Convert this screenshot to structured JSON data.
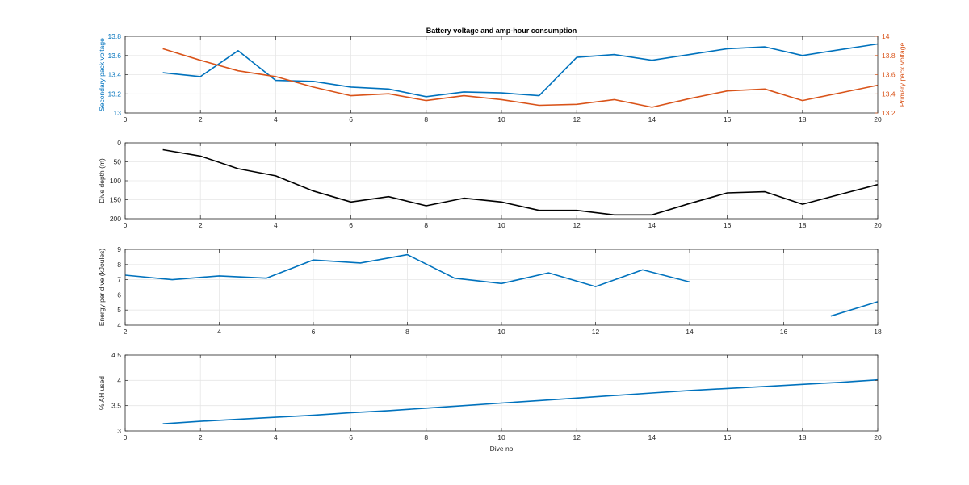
{
  "figure": {
    "title": "Battery voltage and amp-hour consumption",
    "xlabel": "Dive no"
  },
  "colors": {
    "blue": "#0072BD",
    "orange": "#D95319",
    "black": "#000000",
    "grid": "#e6e6e6",
    "axis": "#262626"
  },
  "chart_data": [
    {
      "type": "line",
      "title": "Battery voltage and amp-hour consumption",
      "xlabel": "",
      "ylabel": "Secondary pack voltage",
      "ylabel_right": "Primary pack voltage",
      "xlim": [
        0,
        20
      ],
      "ylim": [
        13,
        13.8
      ],
      "ylim_right": [
        13.2,
        14
      ],
      "xticks": [
        0,
        2,
        4,
        6,
        8,
        10,
        12,
        14,
        16,
        18,
        20
      ],
      "yticks": [
        13,
        13.2,
        13.4,
        13.6,
        13.8
      ],
      "yticks_right": [
        13.2,
        13.4,
        13.6,
        13.8,
        14
      ],
      "grid": true,
      "series": [
        {
          "axis": "left",
          "color": "#0072BD",
          "x": [
            1,
            2,
            3,
            4,
            5,
            6,
            7,
            8,
            9,
            10,
            11,
            12,
            13,
            14,
            15,
            16,
            17,
            18,
            19,
            20
          ],
          "values": [
            13.42,
            13.38,
            13.65,
            13.34,
            13.33,
            13.27,
            13.25,
            13.17,
            13.22,
            13.21,
            13.18,
            13.58,
            13.61,
            13.55,
            13.61,
            13.67,
            13.69,
            13.6,
            13.66,
            13.72
          ]
        },
        {
          "axis": "right",
          "color": "#D95319",
          "x": [
            1,
            2,
            3,
            4,
            5,
            6,
            7,
            8,
            9,
            10,
            11,
            12,
            13,
            14,
            15,
            16,
            17,
            18,
            19,
            20
          ],
          "values": [
            13.87,
            13.75,
            13.64,
            13.58,
            13.47,
            13.38,
            13.4,
            13.33,
            13.38,
            13.34,
            13.28,
            13.29,
            13.34,
            13.26,
            13.35,
            13.43,
            13.45,
            13.33,
            13.41,
            13.49
          ]
        }
      ]
    },
    {
      "type": "line",
      "ylabel": "Dive depth (m)",
      "xlim": [
        0,
        20
      ],
      "ylim": [
        0,
        200
      ],
      "y_reversed": true,
      "xticks": [
        0,
        2,
        4,
        6,
        8,
        10,
        12,
        14,
        16,
        18,
        20
      ],
      "yticks": [
        0,
        50,
        100,
        150,
        200
      ],
      "grid": true,
      "series": [
        {
          "color": "#000000",
          "x": [
            1,
            2,
            3,
            4,
            5,
            6,
            7,
            8,
            9,
            10,
            11,
            12,
            13,
            14,
            15,
            16,
            17,
            18,
            19,
            20
          ],
          "values": [
            18,
            35,
            68,
            87,
            127,
            156,
            142,
            166,
            146,
            156,
            178,
            178,
            190,
            190,
            160,
            132,
            129,
            162,
            136,
            110
          ]
        }
      ]
    },
    {
      "type": "line",
      "ylabel": "Energy per dive (kJoules)",
      "xlim": [
        2,
        18
      ],
      "ylim": [
        4,
        9
      ],
      "xticks": [
        2,
        4,
        6,
        8,
        10,
        12,
        14,
        16,
        18
      ],
      "yticks": [
        4,
        5,
        6,
        7,
        8,
        9
      ],
      "grid": true,
      "series": [
        {
          "color": "#0072BD",
          "segments": [
            {
              "x": [
                2,
                3,
                4,
                5,
                6,
                7,
                8,
                9,
                10,
                11,
                12,
                13,
                14
              ],
              "values": [
                7.3,
                7.0,
                7.25,
                7.1,
                8.3,
                8.1,
                8.65,
                7.1,
                6.75,
                7.45,
                6.55,
                7.65,
                6.85
              ]
            },
            {
              "x": [
                17,
                18
              ],
              "values": [
                4.6,
                5.55
              ]
            }
          ]
        }
      ]
    },
    {
      "type": "line",
      "ylabel": "% AH used",
      "xlabel": "Dive no",
      "xlim": [
        0,
        20
      ],
      "ylim": [
        3,
        4.5
      ],
      "xticks": [
        0,
        2,
        4,
        6,
        8,
        10,
        12,
        14,
        16,
        18,
        20
      ],
      "yticks": [
        3,
        3.5,
        4,
        4.5
      ],
      "grid": true,
      "series": [
        {
          "color": "#0072BD",
          "x": [
            1,
            2,
            3,
            4,
            5,
            6,
            7,
            8,
            9,
            10,
            11,
            12,
            13,
            14,
            15,
            16,
            17,
            18,
            19,
            20
          ],
          "values": [
            3.14,
            3.19,
            3.23,
            3.27,
            3.31,
            3.36,
            3.4,
            3.45,
            3.5,
            3.55,
            3.6,
            3.65,
            3.7,
            3.75,
            3.8,
            3.84,
            3.88,
            3.92,
            3.96,
            4.01
          ]
        }
      ]
    }
  ]
}
